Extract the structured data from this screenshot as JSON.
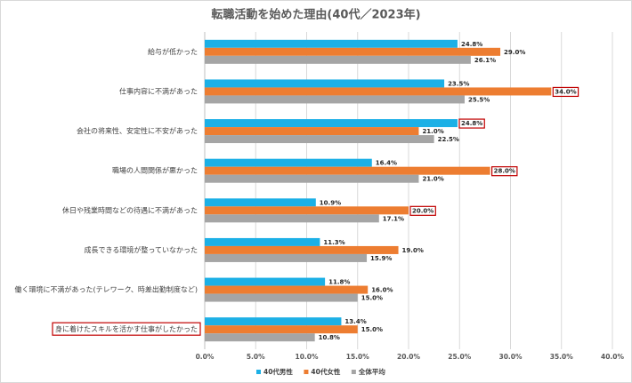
{
  "chart_data": {
    "type": "hbar",
    "title": "転職活動を始めた理由(40代／2023年)",
    "categories": [
      "給与が低かった",
      "仕事内容に不満があった",
      "会社の将来性、安定性に不安があった",
      "職場の人間関係が悪かった",
      "休日や残業時間などの待遇に不満があった",
      "成長できる環境が整っていなかった",
      "働く環境に不満があった(テレワーク、時差出勤制度など)",
      "身に着けたスキルを活かす仕事がしたかった"
    ],
    "series": [
      {
        "name": "40代男性",
        "color": "#1cb0e6",
        "values": [
          24.8,
          23.5,
          24.8,
          16.4,
          10.9,
          11.3,
          11.8,
          13.4
        ],
        "value_labels": [
          "24.8%",
          "23.5%",
          "24.8%",
          "16.4%",
          "10.9%",
          "11.3%",
          "11.8%",
          "13.4%"
        ]
      },
      {
        "name": "40代女性",
        "color": "#ed7d31",
        "values": [
          29.0,
          34.0,
          21.0,
          28.0,
          20.0,
          19.0,
          16.0,
          15.0
        ],
        "value_labels": [
          "29.0%",
          "34.0%",
          "21.0%",
          "28.0%",
          "20.0%",
          "19.0%",
          "16.0%",
          "15.0%"
        ]
      },
      {
        "name": "全体平均",
        "color": "#a5a5a5",
        "values": [
          26.1,
          25.5,
          22.5,
          21.0,
          17.1,
          15.9,
          15.0,
          10.8
        ],
        "value_labels": [
          "26.1%",
          "25.5%",
          "22.5%",
          "21.0%",
          "17.1%",
          "15.9%",
          "15.0%",
          "10.8%"
        ]
      }
    ],
    "xlim": [
      0,
      40
    ],
    "xticks": [
      {
        "value": 0,
        "label": "0.0%"
      },
      {
        "value": 5,
        "label": "5.0%"
      },
      {
        "value": 10,
        "label": "10.0%"
      },
      {
        "value": 15,
        "label": "15.0%"
      },
      {
        "value": 20,
        "label": "20.0%"
      },
      {
        "value": 25,
        "label": "25.0%"
      },
      {
        "value": 30,
        "label": "30.0%"
      },
      {
        "value": 35,
        "label": "35.0%"
      },
      {
        "value": 40,
        "label": "40.0%"
      }
    ],
    "grid": true,
    "legend": "bottom"
  }
}
